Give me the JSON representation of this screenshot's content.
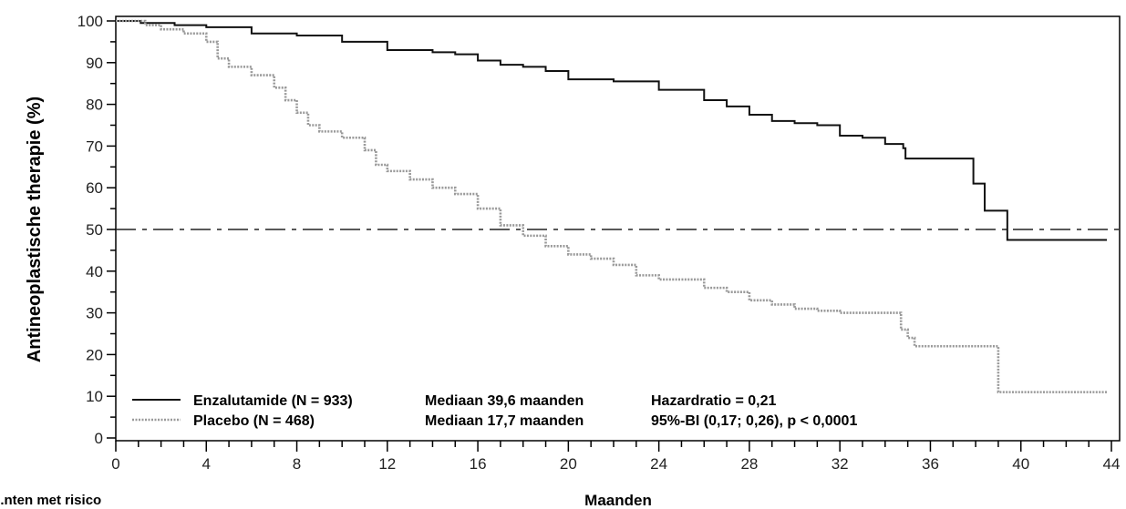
{
  "chart_data": {
    "type": "line",
    "xlabel": "Maanden",
    "ylabel": "Antineoplastische therapie (%)",
    "footer_label": "...nten met risico",
    "xlim": [
      0,
      44
    ],
    "ylim": [
      0,
      100
    ],
    "x_ticks": [
      0,
      4,
      8,
      12,
      16,
      20,
      24,
      28,
      32,
      36,
      40,
      44
    ],
    "y_ticks": [
      0,
      10,
      20,
      30,
      40,
      50,
      60,
      70,
      80,
      90,
      100
    ],
    "reference_line": {
      "y": 50,
      "style": "dash-dot"
    },
    "series": [
      {
        "name": "Enzalutamide (N = 933)",
        "style": "solid",
        "color": "#111111",
        "points": [
          [
            0,
            100
          ],
          [
            1,
            100
          ],
          [
            1.1,
            99.5
          ],
          [
            2.5,
            99.5
          ],
          [
            2.6,
            99
          ],
          [
            4,
            98.5
          ],
          [
            6,
            97
          ],
          [
            8,
            96.5
          ],
          [
            10,
            95
          ],
          [
            12,
            93
          ],
          [
            14,
            92.5
          ],
          [
            15,
            92
          ],
          [
            16,
            90.5
          ],
          [
            17,
            89.5
          ],
          [
            18,
            89
          ],
          [
            19,
            88
          ],
          [
            20,
            86
          ],
          [
            22,
            85.5
          ],
          [
            24,
            83.5
          ],
          [
            26,
            81
          ],
          [
            27,
            79.5
          ],
          [
            28,
            77.5
          ],
          [
            29,
            76
          ],
          [
            30,
            75.5
          ],
          [
            31,
            75
          ],
          [
            32,
            72.5
          ],
          [
            33,
            72
          ],
          [
            34,
            70.5
          ],
          [
            34.8,
            69.5
          ],
          [
            34.9,
            67
          ],
          [
            37.8,
            67
          ],
          [
            37.9,
            61
          ],
          [
            38.3,
            61
          ],
          [
            38.4,
            54.5
          ],
          [
            39.3,
            54.5
          ],
          [
            39.4,
            47.5
          ],
          [
            43.8,
            47.5
          ]
        ]
      },
      {
        "name": "Placebo (N = 468)",
        "style": "dotted",
        "color": "#999999",
        "points": [
          [
            0,
            100
          ],
          [
            1,
            100
          ],
          [
            1.3,
            99
          ],
          [
            2,
            98
          ],
          [
            3,
            97
          ],
          [
            4,
            95
          ],
          [
            4.5,
            91
          ],
          [
            5,
            89
          ],
          [
            6,
            87
          ],
          [
            7,
            84
          ],
          [
            7.5,
            81
          ],
          [
            8,
            78
          ],
          [
            8.5,
            75
          ],
          [
            9,
            73.5
          ],
          [
            10,
            72
          ],
          [
            11,
            69
          ],
          [
            11.5,
            65.5
          ],
          [
            12,
            64
          ],
          [
            13,
            62
          ],
          [
            14,
            60
          ],
          [
            15,
            58.5
          ],
          [
            16,
            55
          ],
          [
            17,
            51
          ],
          [
            18,
            48.5
          ],
          [
            19,
            46
          ],
          [
            20,
            44
          ],
          [
            21,
            43
          ],
          [
            22,
            41.5
          ],
          [
            23,
            39
          ],
          [
            24,
            38
          ],
          [
            25,
            38
          ],
          [
            26,
            36
          ],
          [
            27,
            35
          ],
          [
            28,
            33
          ],
          [
            29,
            32
          ],
          [
            30,
            31
          ],
          [
            31,
            30.5
          ],
          [
            32,
            30
          ],
          [
            33,
            30
          ],
          [
            34.5,
            30
          ],
          [
            34.7,
            26
          ],
          [
            35,
            24
          ],
          [
            35.3,
            22
          ],
          [
            38.9,
            22
          ],
          [
            39,
            11
          ],
          [
            43.8,
            11
          ]
        ]
      }
    ],
    "legend": {
      "placement": "bottom-left",
      "rows": [
        {
          "series": "Enzalutamide (N = 933)",
          "median": "Mediaan 39,6 maanden",
          "stat": "Hazardratio = 0,21"
        },
        {
          "series": "Placebo (N = 468)",
          "median": "Mediaan 17,7 maanden",
          "stat": "95%-BI (0,17; 0,26), p < 0,0001"
        }
      ]
    }
  }
}
